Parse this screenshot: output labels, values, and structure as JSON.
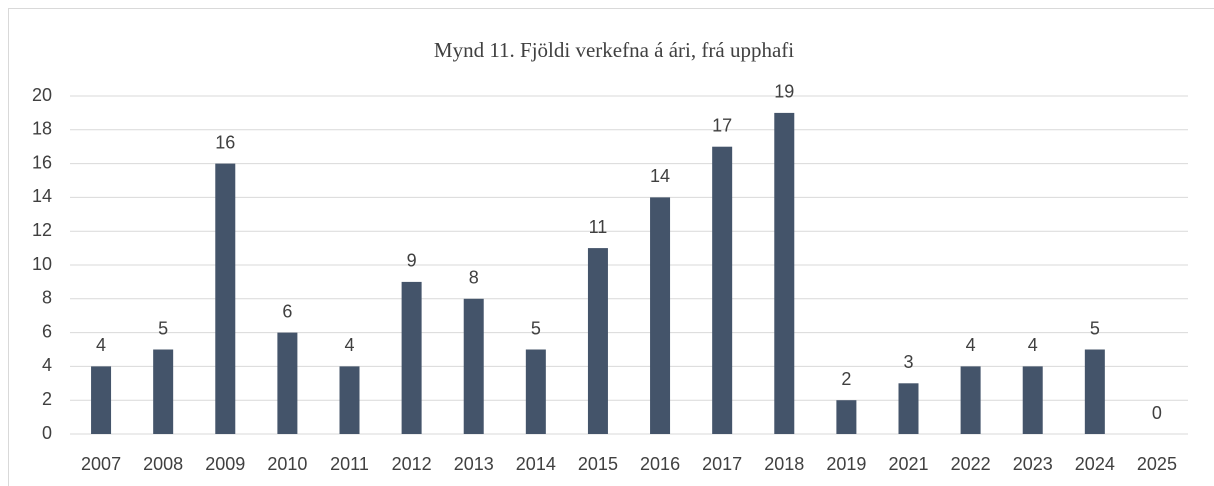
{
  "chart_data": {
    "type": "bar",
    "title": "Mynd 11. Fjöldi verkefna á ári, frá upphafi",
    "categories": [
      "2007",
      "2008",
      "2009",
      "2010",
      "2011",
      "2012",
      "2013",
      "2014",
      "2015",
      "2016",
      "2017",
      "2018",
      "2019",
      "2021",
      "2022",
      "2023",
      "2024",
      "2025"
    ],
    "values": [
      4,
      5,
      16,
      6,
      4,
      9,
      8,
      5,
      11,
      14,
      17,
      19,
      2,
      3,
      4,
      4,
      5,
      0
    ],
    "color": "#44546a",
    "ylim": [
      0,
      20
    ],
    "yticks": [
      0,
      2,
      4,
      6,
      8,
      10,
      12,
      14,
      16,
      18,
      20
    ],
    "grid": true
  }
}
